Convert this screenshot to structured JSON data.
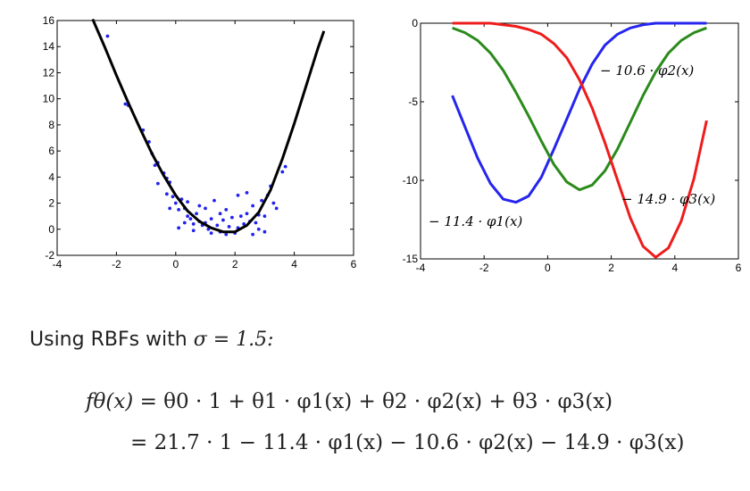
{
  "chart_data": [
    {
      "type": "scatter",
      "xlim": [
        -4,
        6
      ],
      "ylim": [
        -2,
        16
      ],
      "xticks": [
        "-4",
        "-2",
        "0",
        "2",
        "4",
        "6"
      ],
      "yticks": [
        "-2",
        "0",
        "2",
        "4",
        "6",
        "8",
        "10",
        "12",
        "14",
        "16"
      ],
      "grid": false,
      "series": [
        {
          "kind": "points",
          "color": "#2222ee",
          "points": [
            [
              -2.3,
              14.8
            ],
            [
              -1.7,
              9.6
            ],
            [
              -1.6,
              9.5
            ],
            [
              -1.1,
              7.6
            ],
            [
              -0.9,
              6.7
            ],
            [
              -0.8,
              5.8
            ],
            [
              -0.6,
              5.1
            ],
            [
              -0.7,
              4.9
            ],
            [
              -0.4,
              4.3
            ],
            [
              -0.3,
              3.9
            ],
            [
              -0.2,
              3.6
            ],
            [
              -0.6,
              3.5
            ],
            [
              -0.1,
              2.5
            ],
            [
              0.0,
              2.0
            ],
            [
              0.1,
              1.5
            ],
            [
              0.2,
              2.3
            ],
            [
              0.3,
              1.6
            ],
            [
              0.4,
              1.0
            ],
            [
              0.3,
              0.5
            ],
            [
              0.5,
              0.8
            ],
            [
              0.6,
              0.4
            ],
            [
              0.7,
              1.2
            ],
            [
              0.8,
              0.6
            ],
            [
              0.9,
              0.3
            ],
            [
              1.0,
              0.5
            ],
            [
              1.1,
              0.0
            ],
            [
              1.2,
              0.8
            ],
            [
              1.3,
              2.2
            ],
            [
              1.4,
              0.3
            ],
            [
              1.5,
              -0.2
            ],
            [
              1.6,
              0.7
            ],
            [
              1.7,
              -0.4
            ],
            [
              1.8,
              0.2
            ],
            [
              1.9,
              0.9
            ],
            [
              2.0,
              -0.3
            ],
            [
              2.1,
              0.1
            ],
            [
              2.2,
              1.0
            ],
            [
              2.3,
              0.4
            ],
            [
              2.4,
              1.2
            ],
            [
              2.5,
              0.6
            ],
            [
              2.6,
              1.8
            ],
            [
              2.7,
              0.5
            ],
            [
              2.8,
              1.1
            ],
            [
              2.9,
              2.2
            ],
            [
              3.0,
              1.0
            ],
            [
              3.1,
              2.6
            ],
            [
              3.2,
              3.3
            ],
            [
              3.3,
              2.0
            ],
            [
              3.4,
              1.6
            ],
            [
              3.6,
              4.4
            ],
            [
              3.7,
              4.8
            ],
            [
              -0.3,
              2.7
            ],
            [
              0.1,
              0.1
            ],
            [
              0.6,
              -0.1
            ],
            [
              1.0,
              1.6
            ],
            [
              1.7,
              1.5
            ],
            [
              2.1,
              2.6
            ],
            [
              2.6,
              -0.4
            ],
            [
              1.2,
              -0.3
            ],
            [
              0.8,
              1.8
            ],
            [
              2.8,
              0.0
            ],
            [
              -0.2,
              1.6
            ],
            [
              1.5,
              1.2
            ],
            [
              2.4,
              2.8
            ],
            [
              0.4,
              2.1
            ],
            [
              3.0,
              -0.2
            ]
          ]
        },
        {
          "kind": "fit-curve",
          "color": "#000000",
          "x": [
            -2.8,
            -2.4,
            -2.0,
            -1.6,
            -1.2,
            -0.8,
            -0.4,
            0.0,
            0.4,
            0.8,
            1.2,
            1.6,
            2.0,
            2.4,
            2.8,
            3.2,
            3.6,
            4.0,
            4.4,
            4.8,
            5.0
          ],
          "y": [
            16.1,
            14.0,
            11.8,
            9.7,
            7.7,
            5.8,
            4.1,
            2.6,
            1.4,
            0.6,
            0.1,
            -0.2,
            -0.2,
            0.3,
            1.3,
            3.0,
            5.4,
            8.1,
            11.0,
            13.9,
            15.2
          ]
        }
      ]
    },
    {
      "type": "line",
      "xlim": [
        -4,
        6
      ],
      "ylim": [
        -15,
        0
      ],
      "xticks": [
        "-4",
        "-2",
        "0",
        "2",
        "4",
        "6"
      ],
      "yticks": [
        "0",
        "-5",
        "-10",
        "-15"
      ],
      "grid": false,
      "series": [
        {
          "color": "#2525ee",
          "label": "− 11.4 · φ1(x)",
          "x": [
            -3.0,
            -2.6,
            -2.2,
            -1.8,
            -1.4,
            -1.0,
            -0.6,
            -0.2,
            0.2,
            0.6,
            1.0,
            1.4,
            1.8,
            2.2,
            2.6,
            3.0,
            3.4,
            3.8,
            4.2,
            4.6,
            5.0
          ],
          "y": [
            -4.6,
            -6.6,
            -8.6,
            -10.2,
            -11.2,
            -11.4,
            -11.0,
            -9.8,
            -8.0,
            -6.1,
            -4.2,
            -2.6,
            -1.4,
            -0.7,
            -0.3,
            -0.1,
            0.0,
            0.0,
            0.0,
            0.0,
            0.0
          ]
        },
        {
          "color": "#2a8a1a",
          "label": "− 10.6 · φ2(x)",
          "x": [
            -3.0,
            -2.6,
            -2.2,
            -1.8,
            -1.4,
            -1.0,
            -0.6,
            -0.2,
            0.2,
            0.6,
            1.0,
            1.4,
            1.8,
            2.2,
            2.6,
            3.0,
            3.4,
            3.8,
            4.2,
            4.6,
            5.0
          ],
          "y": [
            -0.3,
            -0.6,
            -1.1,
            -1.9,
            -3.0,
            -4.4,
            -5.9,
            -7.5,
            -9.0,
            -10.1,
            -10.6,
            -10.3,
            -9.4,
            -8.0,
            -6.3,
            -4.6,
            -3.1,
            -1.9,
            -1.1,
            -0.6,
            -0.3
          ]
        },
        {
          "color": "#ee1c1c",
          "label": "− 14.9 · φ3(x)",
          "x": [
            -3.0,
            -2.6,
            -2.2,
            -1.8,
            -1.4,
            -1.0,
            -0.6,
            -0.2,
            0.2,
            0.6,
            1.0,
            1.4,
            1.8,
            2.2,
            2.6,
            3.0,
            3.4,
            3.8,
            4.2,
            4.6,
            5.0
          ],
          "y": [
            0.0,
            0.0,
            0.0,
            0.0,
            -0.1,
            -0.2,
            -0.4,
            -0.7,
            -1.3,
            -2.2,
            -3.6,
            -5.4,
            -7.6,
            -10.0,
            -12.4,
            -14.2,
            -14.9,
            -14.3,
            -12.6,
            -9.9,
            -6.2
          ]
        }
      ]
    }
  ],
  "annotations": {
    "phi1": "− 11.4 · φ1(x)",
    "phi2": "− 10.6 · φ2(x)",
    "phi3": "− 14.9 · φ3(x)"
  },
  "text": {
    "intro_prefix": "Using RBFs with ",
    "intro_sigma": "σ = 1.5:",
    "eq1_lhs": "fθ(x)",
    "eq1_rhs": "= θ0 · 1 + θ1 · φ1(x) + θ2 · φ2(x) + θ3 · φ3(x)",
    "eq2_rhs": "= 21.7 · 1 − 11.4 · φ1(x) − 10.6 · φ2(x) − 14.9 · φ3(x)"
  }
}
